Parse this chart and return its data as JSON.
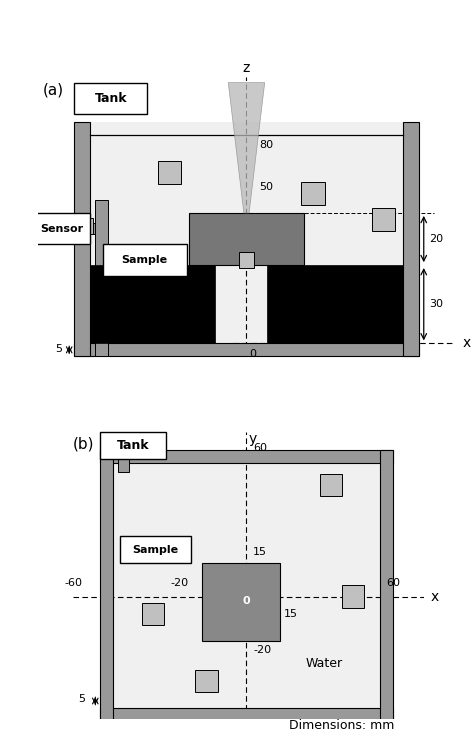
{
  "fig_width": 4.74,
  "fig_height": 7.41,
  "fig_dpi": 100,
  "bg_color": "#ffffff",
  "gray_dark": "#777777",
  "gray_wall": "#999999",
  "gray_light": "#c0c0c0",
  "gray_sample_b": "#888888",
  "panel_a_label": "(a)",
  "panel_b_label": "(b)",
  "tank_label": "Tank",
  "sensor_label": "Sensor",
  "sample_label": "Sample",
  "water_label": "Water",
  "dim_label": "Dimensions: mm"
}
